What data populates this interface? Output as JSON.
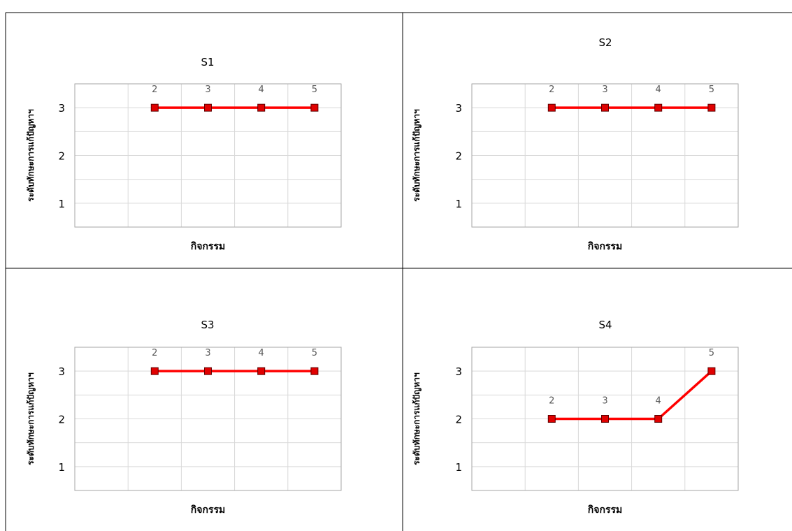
{
  "colors": {
    "line": "#ff0000",
    "marker_fill": "#e00000",
    "marker_stroke": "#600000",
    "grid": "#d9d9d9",
    "plot_border": "#a6a6a6",
    "cell_border": "#000000",
    "label_text": "#595959"
  },
  "chart_data": [
    {
      "type": "line",
      "title": "S1",
      "xlabel": "กิจกรรม",
      "ylabel": "ระดับทักษะการแก้ปัญหาฯ",
      "x": [
        2,
        3,
        4,
        5
      ],
      "series": [
        {
          "values": [
            3,
            3,
            3,
            3
          ]
        }
      ],
      "point_labels": [
        "2",
        "3",
        "4",
        "5"
      ],
      "ylim": [
        0.5,
        3.5
      ],
      "xlim": [
        0.5,
        5.5
      ],
      "yticks": [
        "1",
        "2",
        "3"
      ],
      "grid": true,
      "legend": "none"
    },
    {
      "type": "line",
      "title": "S2",
      "xlabel": "กิจกรรม",
      "ylabel": "ระดับทักษะการแก้ปัญหาฯ",
      "x": [
        2,
        3,
        4,
        5
      ],
      "series": [
        {
          "values": [
            3,
            3,
            3,
            3
          ]
        }
      ],
      "point_labels": [
        "2",
        "3",
        "4",
        "5"
      ],
      "ylim": [
        0.5,
        3.5
      ],
      "xlim": [
        0.5,
        5.5
      ],
      "yticks": [
        "1",
        "2",
        "3"
      ],
      "grid": true,
      "legend": "none"
    },
    {
      "type": "line",
      "title": "S3",
      "xlabel": "กิจกรรม",
      "ylabel": "ระดับทักษะการแก้ปัญหาฯ",
      "x": [
        2,
        3,
        4,
        5
      ],
      "series": [
        {
          "values": [
            3,
            3,
            3,
            3
          ]
        }
      ],
      "point_labels": [
        "2",
        "3",
        "4",
        "5"
      ],
      "ylim": [
        0.5,
        3.5
      ],
      "xlim": [
        0.5,
        5.5
      ],
      "yticks": [
        "1",
        "2",
        "3"
      ],
      "grid": true,
      "legend": "none"
    },
    {
      "type": "line",
      "title": "S4",
      "xlabel": "กิจกรรม",
      "ylabel": "ระดับทักษะการแก้ปัญหาฯ",
      "x": [
        2,
        3,
        4,
        5
      ],
      "series": [
        {
          "values": [
            2,
            2,
            2,
            3
          ]
        }
      ],
      "point_labels": [
        "2",
        "3",
        "4",
        "5"
      ],
      "ylim": [
        0.5,
        3.5
      ],
      "xlim": [
        0.5,
        5.5
      ],
      "yticks": [
        "1",
        "2",
        "3"
      ],
      "grid": true,
      "legend": "none"
    }
  ]
}
